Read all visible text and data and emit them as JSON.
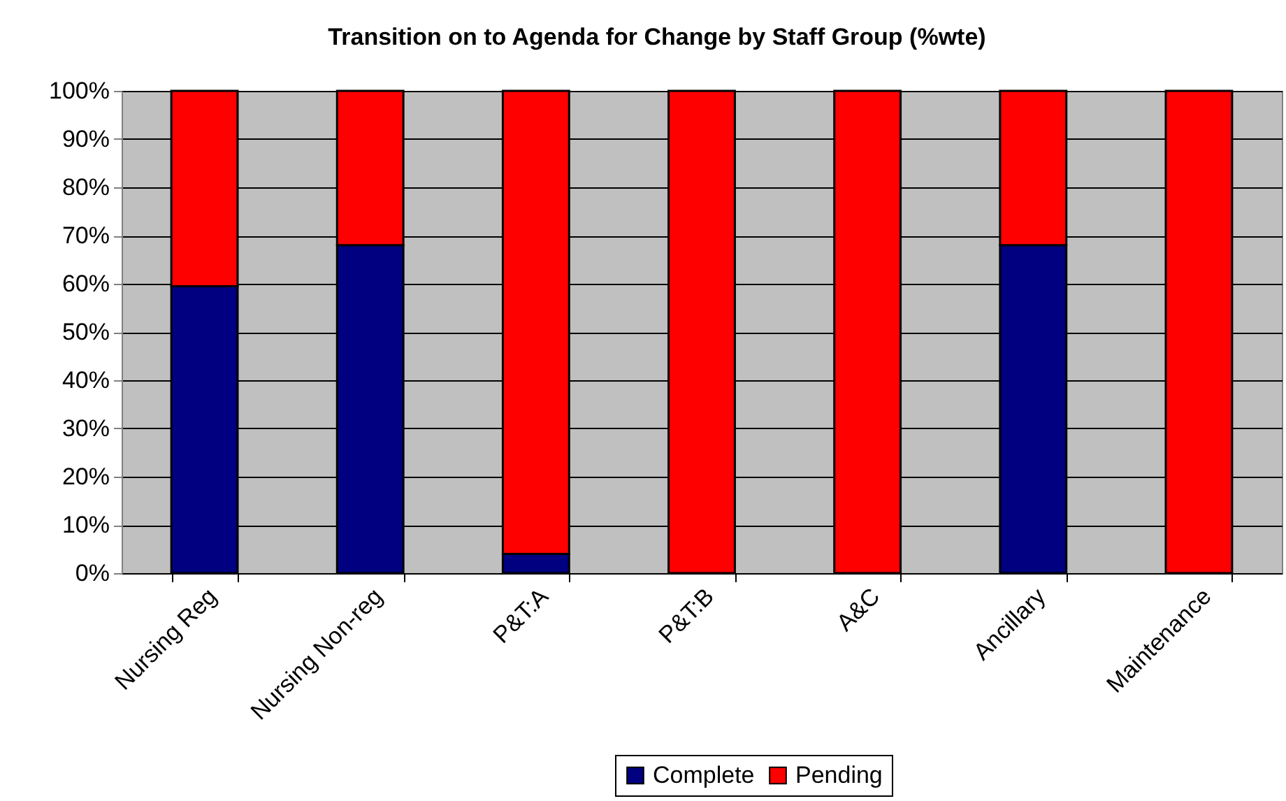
{
  "chart_data": {
    "type": "bar",
    "title": "Transition on to Agenda for Change by Staff Group (%wte)",
    "categories": [
      "Nursing Reg",
      "Nursing Non-reg",
      "P&T:A",
      "P&T:B",
      "A&C",
      "Ancillary",
      "Maintenance"
    ],
    "series": [
      {
        "name": "Complete",
        "color": "#000080",
        "values": [
          59.5,
          68,
          4,
          0,
          0,
          68,
          0
        ]
      },
      {
        "name": "Pending",
        "color": "#ff0000",
        "values": [
          40.5,
          32,
          96,
          100,
          100,
          32,
          100
        ]
      }
    ],
    "stacked": true,
    "ylim": [
      0,
      100
    ],
    "yticks": [
      {
        "value": 0,
        "label": "0%"
      },
      {
        "value": 10,
        "label": "10%"
      },
      {
        "value": 20,
        "label": "20%"
      },
      {
        "value": 30,
        "label": "30%"
      },
      {
        "value": 40,
        "label": "40%"
      },
      {
        "value": 50,
        "label": "50%"
      },
      {
        "value": 60,
        "label": "60%"
      },
      {
        "value": 70,
        "label": "70%"
      },
      {
        "value": 80,
        "label": "80%"
      },
      {
        "value": 90,
        "label": "90%"
      },
      {
        "value": 100,
        "label": "100%"
      }
    ],
    "grid": "y",
    "legend": "bottom"
  }
}
